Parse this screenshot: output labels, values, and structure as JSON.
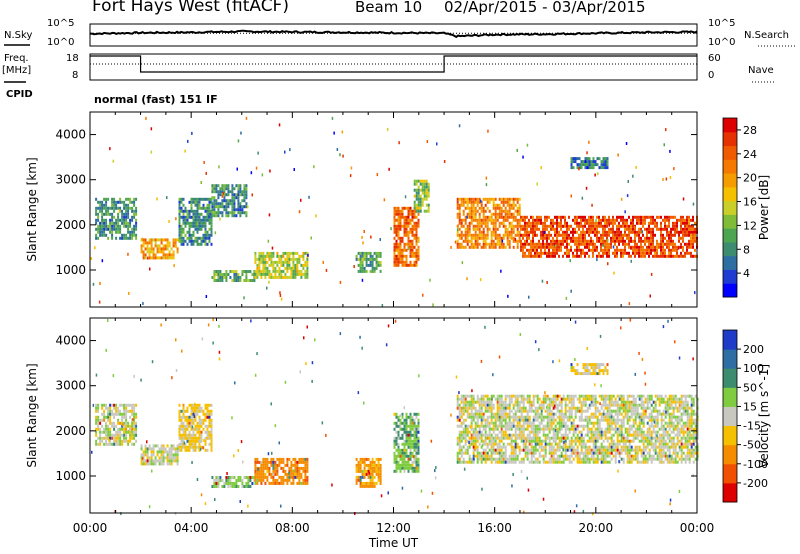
{
  "header": {
    "title": "Fort Hays West (fitACF)",
    "beam": "Beam 10",
    "dates": "02/Apr/2015 - 03/Apr/2015"
  },
  "strip_labels": {
    "nsky": "N.Sky",
    "nsearch": "N.Search",
    "freq_line1": "Freq.",
    "freq_line2": "[MHz]",
    "nave": "Nave",
    "cpid": "CPID"
  },
  "noise_axis": {
    "left_top": "10^5",
    "left_bottom": "10^0",
    "right_top": "10^5",
    "right_bottom": "10^0"
  },
  "freq_axis": {
    "left": [
      "18",
      "8"
    ],
    "right": [
      "60",
      "0"
    ]
  },
  "cpid_text": "normal (fast) 151 IF",
  "chart_data": [
    {
      "type": "line",
      "name": "noise",
      "series": [
        {
          "name": "N.Sky",
          "x": [
            0,
            2,
            4,
            6,
            8,
            10,
            12,
            14,
            14.5,
            16,
            18,
            20,
            22,
            24
          ],
          "y": [
            2.8,
            3.0,
            3.1,
            3.3,
            3.2,
            3.1,
            3.0,
            2.9,
            2.2,
            2.6,
            2.7,
            2.9,
            3.1,
            3.2
          ]
        },
        {
          "name": "N.Search",
          "x": [
            0,
            24
          ],
          "y": [
            2.9,
            2.9
          ]
        }
      ]
    },
    {
      "type": "line",
      "name": "frequency",
      "series": [
        {
          "name": "Freq.",
          "unit": "MHz",
          "x": [
            0,
            2,
            2,
            14,
            14,
            24
          ],
          "y": [
            18,
            18,
            10,
            10,
            18,
            18
          ]
        },
        {
          "name": "Nave",
          "x": [
            0,
            24
          ],
          "y": [
            14,
            14
          ]
        }
      ]
    },
    {
      "type": "heatmap",
      "name": "power",
      "xlabel": "",
      "ylabel": "Slant Range [km]",
      "xlim": [
        0,
        24
      ],
      "ylim": [
        180,
        4500
      ],
      "yticks": [
        1000,
        2000,
        3000,
        4000
      ],
      "colorbar": {
        "label": "Power [dB]",
        "ticks": [
          4,
          8,
          12,
          16,
          20,
          24,
          28
        ],
        "range": [
          0,
          30
        ],
        "colors": [
          "#0000ff",
          "#1e3cd2",
          "#2e6ea2",
          "#3d8c70",
          "#4ea550",
          "#7fbd38",
          "#c9cf28",
          "#f5c000",
          "#f59c00",
          "#f57800",
          "#f05a00",
          "#e63200",
          "#dc0000"
        ]
      },
      "features": [
        {
          "x": [
            0.2,
            1.8
          ],
          "y": [
            1700,
            2600
          ],
          "level": 8
        },
        {
          "x": [
            2.0,
            3.5
          ],
          "y": [
            1300,
            1700
          ],
          "level": 20
        },
        {
          "x": [
            3.5,
            4.8
          ],
          "y": [
            1600,
            2600
          ],
          "level": 8
        },
        {
          "x": [
            4.8,
            6.2
          ],
          "y": [
            2200,
            2900
          ],
          "level": 8
        },
        {
          "x": [
            4.8,
            6.5
          ],
          "y": [
            750,
            1000
          ],
          "level": 10
        },
        {
          "x": [
            6.5,
            8.6
          ],
          "y": [
            850,
            1400
          ],
          "level": 14
        },
        {
          "x": [
            10.5,
            11.5
          ],
          "y": [
            1000,
            1400
          ],
          "level": 10
        },
        {
          "x": [
            12.0,
            13.0
          ],
          "y": [
            1100,
            2400
          ],
          "level": 24
        },
        {
          "x": [
            12.8,
            13.4
          ],
          "y": [
            2300,
            3000
          ],
          "level": 12
        },
        {
          "x": [
            14.5,
            17.0
          ],
          "y": [
            1500,
            2600
          ],
          "level": 22
        },
        {
          "x": [
            17.0,
            24.0
          ],
          "y": [
            1300,
            2200
          ],
          "level": 26
        },
        {
          "x": [
            19.0,
            20.5
          ],
          "y": [
            3300,
            3500
          ],
          "level": 6
        }
      ]
    },
    {
      "type": "heatmap",
      "name": "velocity",
      "xlabel": "Time UT",
      "ylabel": "Slant Range [km]",
      "xlim": [
        0,
        24
      ],
      "ylim": [
        180,
        4500
      ],
      "yticks": [
        1000,
        2000,
        3000,
        4000
      ],
      "xticks": [
        "00:00",
        "04:00",
        "08:00",
        "12:00",
        "16:00",
        "20:00",
        "00:00"
      ],
      "colorbar": {
        "label": "Velocity [m s^-1]",
        "ticks": [
          200,
          100,
          50,
          15,
          -15,
          -50,
          -100,
          -200
        ],
        "colors": [
          "#1e3cc8",
          "#2e6ea2",
          "#3d8c70",
          "#7fcc40",
          "#c8c8c0",
          "#f5c000",
          "#f58c00",
          "#f05000",
          "#dc0000"
        ]
      },
      "features": [
        {
          "x": [
            0.2,
            1.8
          ],
          "y": [
            1700,
            2600
          ],
          "velocity": 0
        },
        {
          "x": [
            2.0,
            3.5
          ],
          "y": [
            1300,
            1700
          ],
          "velocity": 0
        },
        {
          "x": [
            3.5,
            4.8
          ],
          "y": [
            1600,
            2600
          ],
          "velocity": -20
        },
        {
          "x": [
            4.8,
            6.5
          ],
          "y": [
            750,
            1000
          ],
          "velocity": 30
        },
        {
          "x": [
            6.5,
            8.6
          ],
          "y": [
            850,
            1400
          ],
          "velocity": -80
        },
        {
          "x": [
            10.5,
            11.5
          ],
          "y": [
            800,
            1400
          ],
          "velocity": -60
        },
        {
          "x": [
            12.0,
            13.0
          ],
          "y": [
            1100,
            2400
          ],
          "velocity": 40
        },
        {
          "x": [
            14.5,
            24.0
          ],
          "y": [
            1300,
            2800
          ],
          "velocity": 0
        },
        {
          "x": [
            19.0,
            20.5
          ],
          "y": [
            3300,
            3500
          ],
          "velocity": -20
        }
      ]
    }
  ]
}
